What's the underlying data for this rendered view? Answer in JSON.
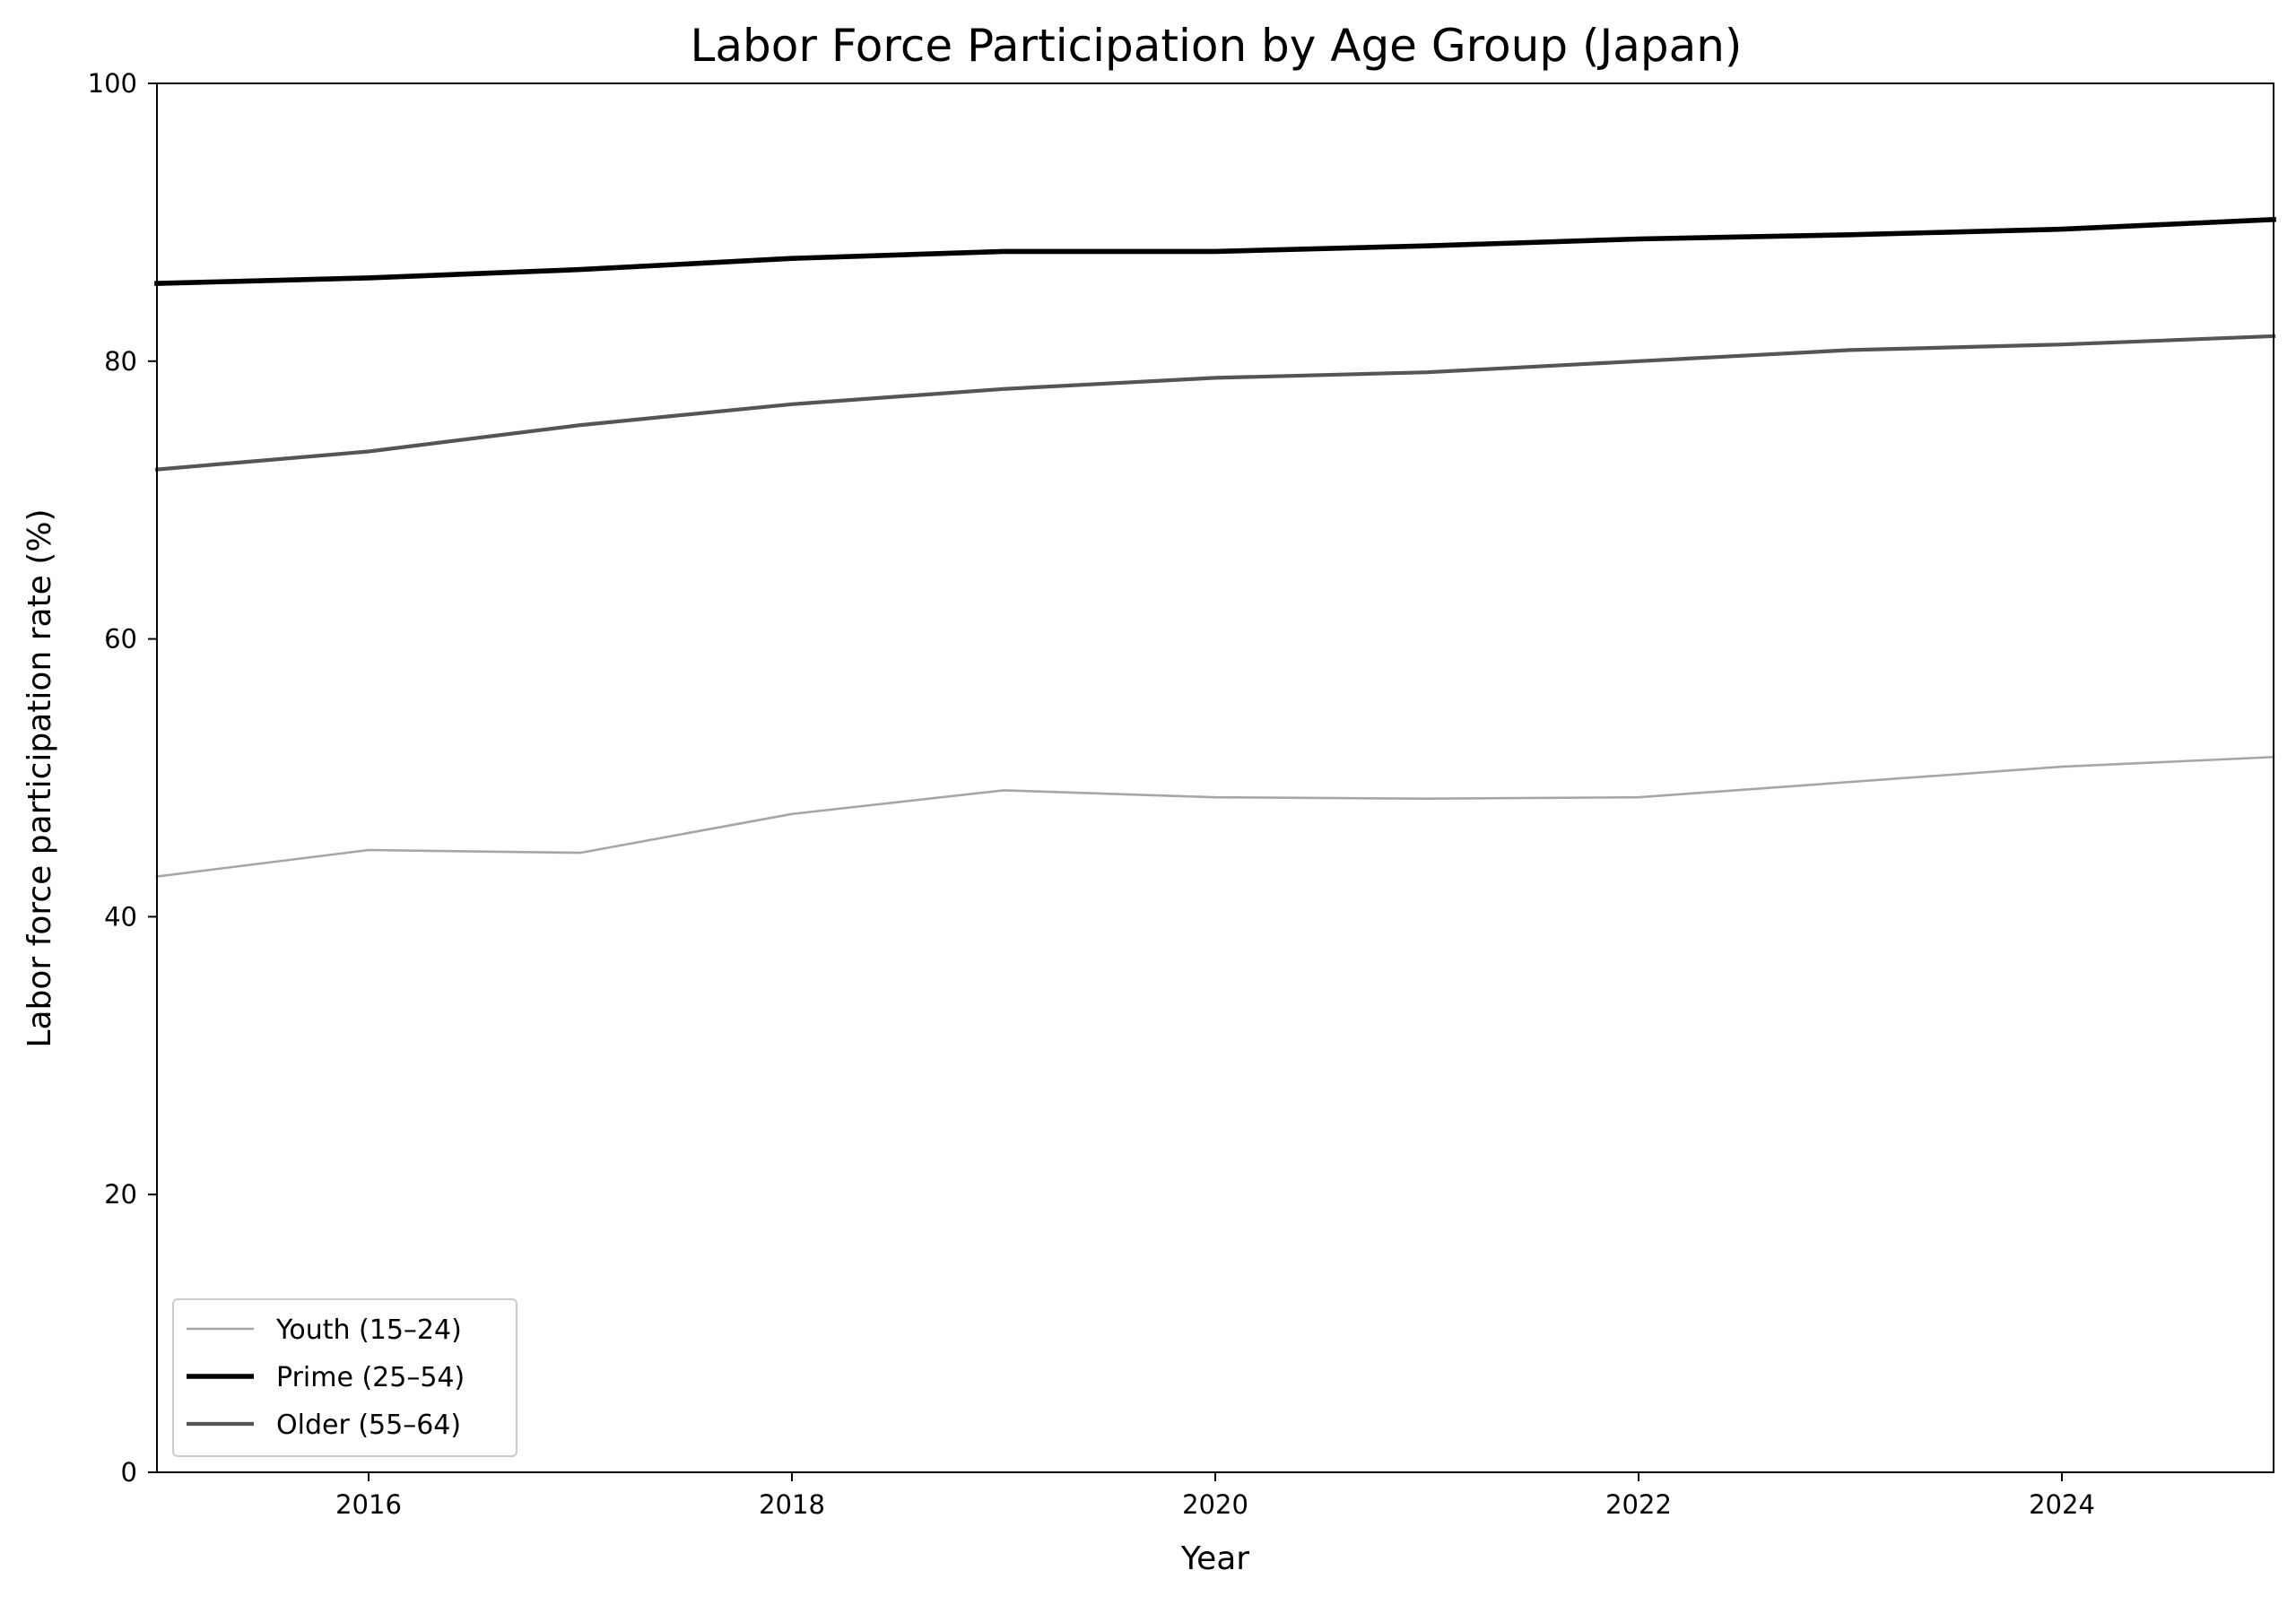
{
  "chart_data": {
    "type": "line",
    "title": "Labor Force Participation by Age Group (Japan)",
    "xlabel": "Year",
    "ylabel": "Labor force participation rate (%)",
    "xlim": [
      2015,
      2025
    ],
    "ylim": [
      0,
      100
    ],
    "x_ticks": [
      2016,
      2018,
      2020,
      2022,
      2024
    ],
    "y_ticks": [
      0,
      20,
      40,
      60,
      80,
      100
    ],
    "grid": false,
    "legend_position": "lower-left",
    "x": [
      2015,
      2016,
      2017,
      2018,
      2019,
      2020,
      2021,
      2022,
      2023,
      2024,
      2025
    ],
    "series": [
      {
        "name": "Youth (15–24)",
        "color": "#a6a6a6",
        "line_width": "thin",
        "values": [
          42.9,
          44.8,
          44.6,
          47.4,
          49.1,
          48.6,
          48.5,
          48.6,
          49.7,
          50.8,
          51.5
        ]
      },
      {
        "name": "Prime (25–54)",
        "color": "#000000",
        "line_width": "thick",
        "values": [
          85.6,
          86.0,
          86.6,
          87.4,
          87.9,
          87.9,
          88.3,
          88.8,
          89.1,
          89.5,
          90.2
        ]
      },
      {
        "name": "Older (55–64)",
        "color": "#555555",
        "line_width": "medium",
        "values": [
          72.2,
          73.5,
          75.4,
          76.9,
          78.0,
          78.8,
          79.2,
          80.0,
          80.8,
          81.2,
          81.8
        ]
      }
    ]
  }
}
